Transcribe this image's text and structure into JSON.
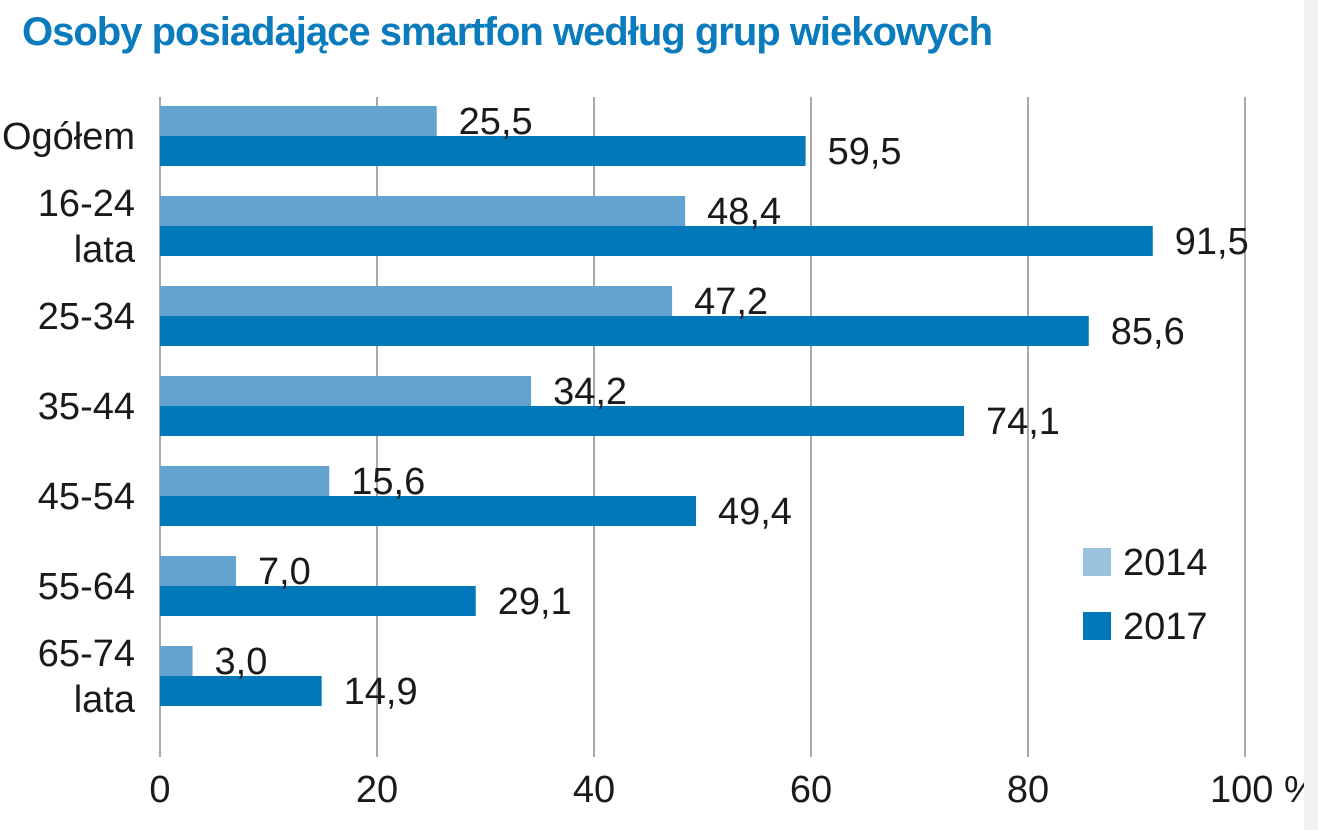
{
  "colors": {
    "title": "#0a7bbd",
    "series_2014": "#62a3cf",
    "series_2017": "#0078b9",
    "legend_2014": "#9bc3df",
    "grid": "#8c8c8c"
  },
  "chart_data": {
    "type": "bar",
    "orientation": "horizontal",
    "title": "Osoby posiadające smartfon według grup wiekowych",
    "categories": [
      [
        "Ogółem"
      ],
      [
        "16-24",
        "lata"
      ],
      [
        "25-34"
      ],
      [
        "35-44"
      ],
      [
        "45-54"
      ],
      [
        "55-64"
      ],
      [
        "65-74",
        "lata"
      ]
    ],
    "series": [
      {
        "name": "2014",
        "values": [
          25.5,
          48.4,
          47.2,
          34.2,
          15.6,
          7.0,
          3.0
        ],
        "labels": [
          "25,5",
          "48,4",
          "47,2",
          "34,2",
          "15,6",
          "7,0",
          "3,0"
        ]
      },
      {
        "name": "2017",
        "values": [
          59.5,
          91.5,
          85.6,
          74.1,
          49.4,
          29.1,
          14.9
        ],
        "labels": [
          "59,5",
          "91,5",
          "85,6",
          "74,1",
          "49,4",
          "29,1",
          "14,9"
        ]
      }
    ],
    "xlim": [
      0,
      100
    ],
    "xticks": [
      0,
      20,
      40,
      60,
      80,
      100
    ],
    "xtick_labels": [
      "0",
      "20",
      "40",
      "60",
      "80",
      "100 %"
    ],
    "grid": true,
    "legend_position": "bottom-right"
  }
}
